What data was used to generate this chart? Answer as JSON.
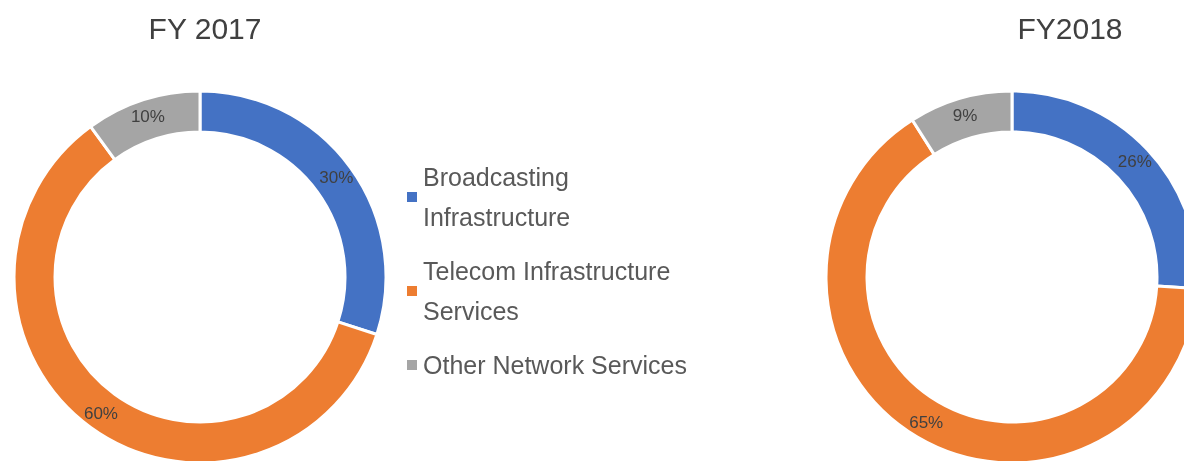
{
  "chart_data": [
    {
      "type": "donut",
      "title": "FY 2017",
      "categories": [
        "Broadcasting Infrastructure",
        "Telecom Infrastructure Services",
        "Other Network Services"
      ],
      "values": [
        30,
        60,
        10
      ],
      "value_labels": [
        "30%",
        "60%",
        "10%"
      ],
      "colors": [
        "#4472c4",
        "#ed7d31",
        "#a5a5a5"
      ],
      "legend": "right"
    },
    {
      "type": "donut",
      "title": "FY2018",
      "categories": [
        null,
        null,
        null
      ],
      "values": [
        26,
        65,
        9
      ],
      "value_labels": [
        "26%",
        "65%",
        "9%"
      ],
      "colors": [
        "#4472c4",
        "#ed7d31",
        "#a5a5a5"
      ]
    }
  ]
}
